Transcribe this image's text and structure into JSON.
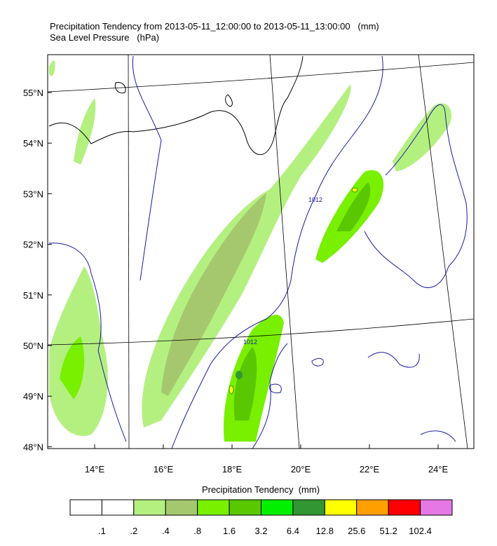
{
  "title": "Precipitation Tendency from 2013-05-11_12:00:00 to 2013-05-11_13:00:00   (mm)",
  "subtitle": "Sea Level Pressure   (hPa)",
  "map": {
    "lat_labels": [
      "55°N",
      "54°N",
      "53°N",
      "52°N",
      "51°N",
      "50°N",
      "49°N",
      "48°N"
    ],
    "lon_labels": [
      "14°E",
      "16°E",
      "18°E",
      "20°E",
      "22°E",
      "24°E"
    ],
    "contour_labels": [
      "1012",
      "1012"
    ]
  },
  "colorbar": {
    "title": "Precipitation Tendency  (mm)",
    "levels": [
      {
        "value": 0.1,
        "label": ".1"
      },
      {
        "value": 0.2,
        "label": ".2"
      },
      {
        "value": 0.4,
        "label": ".4"
      },
      {
        "value": 0.8,
        "label": ".8"
      },
      1.6,
      3.2,
      6.4,
      12.8,
      25.6,
      51.2,
      102.4
    ],
    "colors": [
      "#ffffff",
      "#ffffff",
      "#b4f080",
      "#a5c86e",
      "#78f000",
      "#5ac800",
      "#00f000",
      "#329632",
      "#ffff00",
      "#ffa000",
      "#ff0000",
      "#e678e6"
    ]
  }
}
